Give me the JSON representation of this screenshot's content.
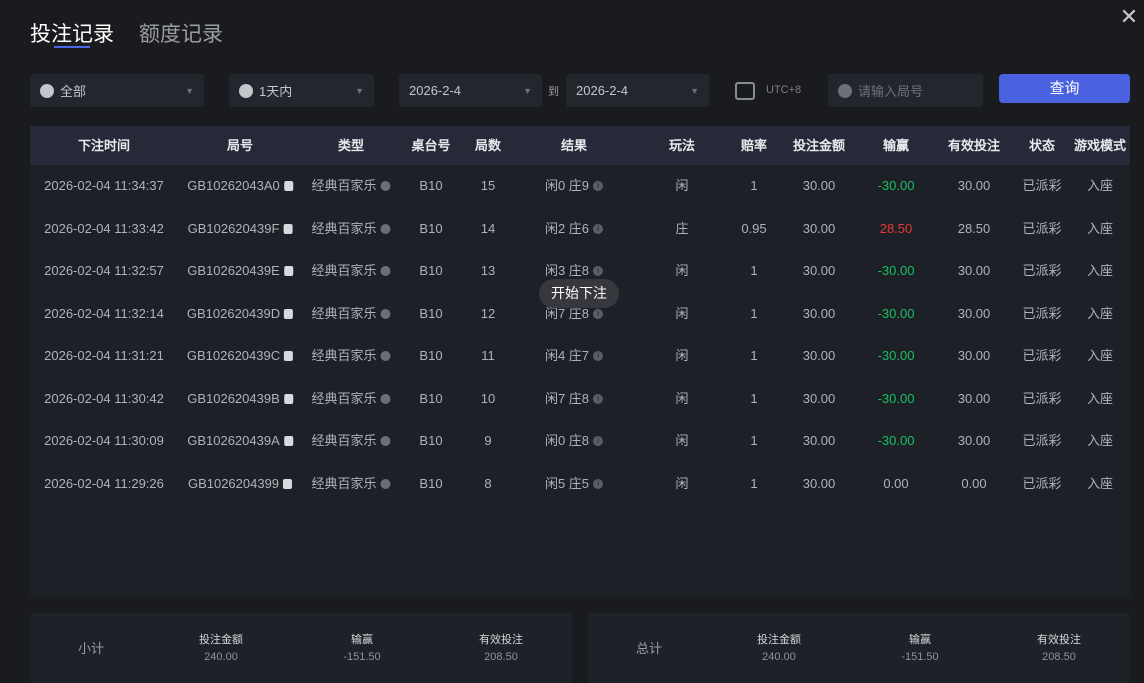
{
  "tabs": [
    {
      "label": "投注记录",
      "active": true
    },
    {
      "label": "额度记录",
      "active": false
    }
  ],
  "filters": {
    "game_type": "全部",
    "time_range": "1天内",
    "start_date": "2026-2-4",
    "to_label": "到",
    "end_date": "2026-2-4",
    "timezone": "UTC+8",
    "round_placeholder": "请输入局号",
    "query_button": "查询"
  },
  "colors": {
    "accent": "#4a62e0",
    "loss": "#18c060",
    "win": "#e83838"
  },
  "columns": [
    "下注时间",
    "局号",
    "类型",
    "桌台号",
    "局数",
    "结果",
    "玩法",
    "赔率",
    "投注金额",
    "输赢",
    "有效投注",
    "状态",
    "游戏模式"
  ],
  "rows": [
    [
      "2026-02-04 11:34:37",
      "GB10262043A0",
      "经典百家乐",
      "B10",
      "15",
      "闲0 庄9",
      "闲",
      "1",
      "30.00",
      "-30.00",
      "30.00",
      "已派彩",
      "入座"
    ],
    [
      "2026-02-04 11:33:42",
      "GB102620439F",
      "经典百家乐",
      "B10",
      "14",
      "闲2 庄6",
      "庄",
      "0.95",
      "30.00",
      "28.50",
      "28.50",
      "已派彩",
      "入座"
    ],
    [
      "2026-02-04 11:32:57",
      "GB102620439E",
      "经典百家乐",
      "B10",
      "13",
      "闲3 庄8",
      "闲",
      "1",
      "30.00",
      "-30.00",
      "30.00",
      "已派彩",
      "入座"
    ],
    [
      "2026-02-04 11:32:14",
      "GB102620439D",
      "经典百家乐",
      "B10",
      "12",
      "闲7 庄8",
      "闲",
      "1",
      "30.00",
      "-30.00",
      "30.00",
      "已派彩",
      "入座"
    ],
    [
      "2026-02-04 11:31:21",
      "GB102620439C",
      "经典百家乐",
      "B10",
      "11",
      "闲4 庄7",
      "闲",
      "1",
      "30.00",
      "-30.00",
      "30.00",
      "已派彩",
      "入座"
    ],
    [
      "2026-02-04 11:30:42",
      "GB102620439B",
      "经典百家乐",
      "B10",
      "10",
      "闲7 庄8",
      "闲",
      "1",
      "30.00",
      "-30.00",
      "30.00",
      "已派彩",
      "入座"
    ],
    [
      "2026-02-04 11:30:09",
      "GB102620439A",
      "经典百家乐",
      "B10",
      "9",
      "闲0 庄8",
      "闲",
      "1",
      "30.00",
      "-30.00",
      "30.00",
      "已派彩",
      "入座"
    ],
    [
      "2026-02-04 11:29:26",
      "GB1026204399",
      "经典百家乐",
      "B10",
      "8",
      "闲5 庄5",
      "闲",
      "1",
      "30.00",
      "0.00",
      "0.00",
      "已派彩",
      "入座"
    ]
  ],
  "tooltip": "开始下注",
  "subtotal": {
    "label": "小计",
    "bet_label": "投注金额",
    "bet": "240.00",
    "win_label": "输赢",
    "win": "-151.50",
    "valid_label": "有效投注",
    "valid": "208.50"
  },
  "total": {
    "label": "总计",
    "bet_label": "投注金额",
    "bet": "240.00",
    "win_label": "输赢",
    "win": "-151.50",
    "valid_label": "有效投注",
    "valid": "208.50"
  }
}
